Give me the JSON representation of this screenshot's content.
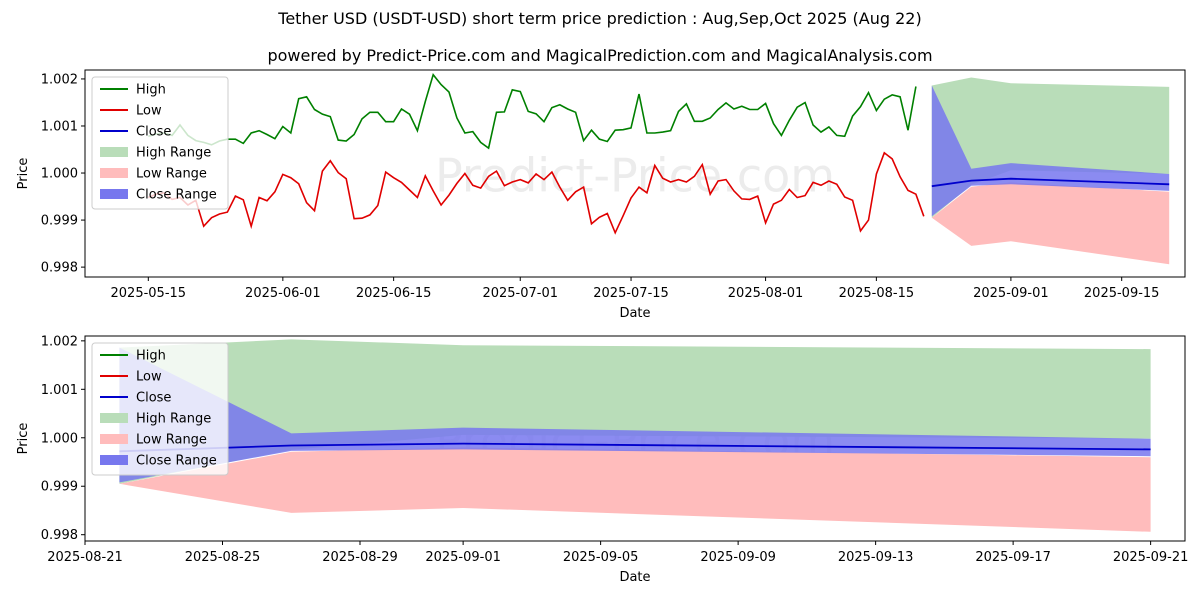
{
  "header": {
    "title": "Tether USD (USDT-USD) short term price prediction : Aug,Sep,Oct 2025 (Aug 22)",
    "subtitle": "powered by Predict-Price.com and MagicalPrediction.com and MagicalAnalysis.com"
  },
  "watermark": "Predict-Price.com",
  "colors": {
    "high": "#008000",
    "low": "#e00000",
    "close": "#0000cc",
    "high_range": "#b9ddb9",
    "low_range": "#ffbcbc",
    "close_range": "#7777ee"
  },
  "chart_data": [
    {
      "type": "line",
      "xlabel": "Date",
      "ylabel": "Price",
      "ylim": [
        0.99779,
        1.00219
      ],
      "xlim": [
        "2025-05-07",
        "2025-09-23"
      ],
      "yticks": [
        "0.998",
        "0.999",
        "1.000",
        "1.001",
        "1.002"
      ],
      "xticks": [
        "2025-05-15",
        "2025-06-01",
        "2025-06-15",
        "2025-07-01",
        "2025-07-15",
        "2025-08-01",
        "2025-08-15",
        "2025-09-01",
        "2025-09-15"
      ],
      "legend": {
        "position": "top-left",
        "entries": [
          "High",
          "Low",
          "Close",
          "High Range",
          "Low Range",
          "Close Range"
        ]
      },
      "history": {
        "start": "2025-05-15",
        "high": [
          1.00078,
          1.00083,
          1.00085,
          1.0008,
          1.00102,
          1.0008,
          1.00069,
          1.00065,
          1.0006,
          1.00068,
          1.00072,
          1.00072,
          1.00063,
          1.00085,
          1.0009,
          1.00082,
          1.00073,
          1.00099,
          1.00085,
          1.00158,
          1.00162,
          1.00135,
          1.00125,
          1.0012,
          1.0007,
          1.00068,
          1.00082,
          1.00115,
          1.00129,
          1.00129,
          1.00109,
          1.00109,
          1.00136,
          1.00125,
          1.0009,
          1.00152,
          1.00209,
          1.00188,
          1.00172,
          1.00117,
          1.00085,
          1.00088,
          1.00065,
          1.00053,
          1.00129,
          1.0013,
          1.00177,
          1.00173,
          1.00131,
          1.00126,
          1.00109,
          1.00139,
          1.00145,
          1.00136,
          1.00129,
          1.00069,
          1.00091,
          1.00072,
          1.00067,
          1.00091,
          1.00092,
          1.00096,
          1.00168,
          1.00085,
          1.00085,
          1.00087,
          1.0009,
          1.00131,
          1.00147,
          1.0011,
          1.0011,
          1.00117,
          1.00135,
          1.00149,
          1.00136,
          1.00142,
          1.00135,
          1.00135,
          1.00148,
          1.00105,
          1.0008,
          1.00112,
          1.0014,
          1.0015,
          1.00102,
          1.00087,
          1.00098,
          1.0008,
          1.00078,
          1.00121,
          1.00141,
          1.00171,
          1.00133,
          1.00157,
          1.00166,
          1.00162,
          1.00091,
          1.00184
        ],
        "low": [
          0.99948,
          0.99955,
          0.99958,
          0.99944,
          0.99948,
          0.99932,
          0.99942,
          0.99887,
          0.99905,
          0.99913,
          0.99917,
          0.99951,
          0.99943,
          0.99887,
          0.99948,
          0.99941,
          0.9996,
          0.99997,
          0.9999,
          0.99977,
          0.99937,
          0.9992,
          1.00004,
          1.00026,
          1.00001,
          0.99988,
          0.99903,
          0.99904,
          0.99911,
          0.99931,
          1.00002,
          0.9999,
          0.9998,
          0.99964,
          0.99948,
          0.99994,
          0.99962,
          0.99932,
          0.99953,
          0.99978,
          0.99999,
          0.99974,
          0.99968,
          0.99993,
          1.00004,
          0.99973,
          0.99981,
          0.99986,
          0.99979,
          0.99998,
          0.99986,
          1.00002,
          0.9997,
          0.99942,
          0.9996,
          0.9997,
          0.99892,
          0.99906,
          0.99914,
          0.99873,
          0.99909,
          0.99947,
          0.9997,
          0.99958,
          1.00016,
          0.99989,
          0.99981,
          0.99986,
          0.99981,
          0.99993,
          1.00018,
          0.99955,
          0.99983,
          0.99986,
          0.99962,
          0.99945,
          0.99944,
          0.99951,
          0.99894,
          0.99934,
          0.99942,
          0.99965,
          0.99948,
          0.99952,
          0.9998,
          0.99974,
          0.99983,
          0.99976,
          0.99949,
          0.99942,
          0.99877,
          0.999,
          0.99998,
          1.00043,
          1.0003,
          0.99992,
          0.99963,
          0.99955
        ],
        "last_low": 0.99908
      },
      "forecast": {
        "dates": [
          "2025-08-22",
          "2025-08-27",
          "2025-09-01",
          "2025-09-21"
        ],
        "high_upper": [
          1.00186,
          1.00203,
          1.00191,
          1.00183
        ],
        "high_lower": [
          0.99905,
          0.99975,
          1.00006,
          0.99998
        ],
        "low_upper": [
          0.99905,
          0.99971,
          0.9998,
          0.9996
        ],
        "low_lower": [
          0.99905,
          0.99845,
          0.99855,
          0.99806
        ],
        "close_upper": [
          1.00186,
          1.00009,
          1.00021,
          0.99998
        ],
        "close_lower": [
          0.99908,
          0.99973,
          0.99976,
          0.99962
        ],
        "close": [
          0.99972,
          0.99984,
          0.99988,
          0.99976
        ]
      }
    },
    {
      "type": "line",
      "xlabel": "Date",
      "ylabel": "Price",
      "ylim": [
        0.99787,
        1.0021
      ],
      "xlim": [
        "2025-08-21",
        "2025-09-22"
      ],
      "yticks": [
        "0.998",
        "0.999",
        "1.000",
        "1.001",
        "1.002"
      ],
      "xticks": [
        "2025-08-21",
        "2025-08-25",
        "2025-08-29",
        "2025-09-01",
        "2025-09-05",
        "2025-09-09",
        "2025-09-13",
        "2025-09-17",
        "2025-09-21"
      ],
      "legend": {
        "position": "top-left",
        "entries": [
          "High",
          "Low",
          "Close",
          "High Range",
          "Low Range",
          "Close Range"
        ]
      },
      "forecast": {
        "dates": [
          "2025-08-22",
          "2025-08-27",
          "2025-09-01",
          "2025-09-21"
        ],
        "high_upper": [
          1.00186,
          1.00203,
          1.00191,
          1.00183
        ],
        "high_lower": [
          0.99905,
          0.99975,
          1.00006,
          0.99998
        ],
        "low_upper": [
          0.99905,
          0.99971,
          0.9998,
          0.9996
        ],
        "low_lower": [
          0.99905,
          0.99845,
          0.99855,
          0.99806
        ],
        "close_upper": [
          1.00186,
          1.00009,
          1.00021,
          0.99998
        ],
        "close_lower": [
          0.99908,
          0.99973,
          0.99976,
          0.99962
        ],
        "close": [
          0.99972,
          0.99984,
          0.99988,
          0.99976
        ]
      }
    }
  ]
}
